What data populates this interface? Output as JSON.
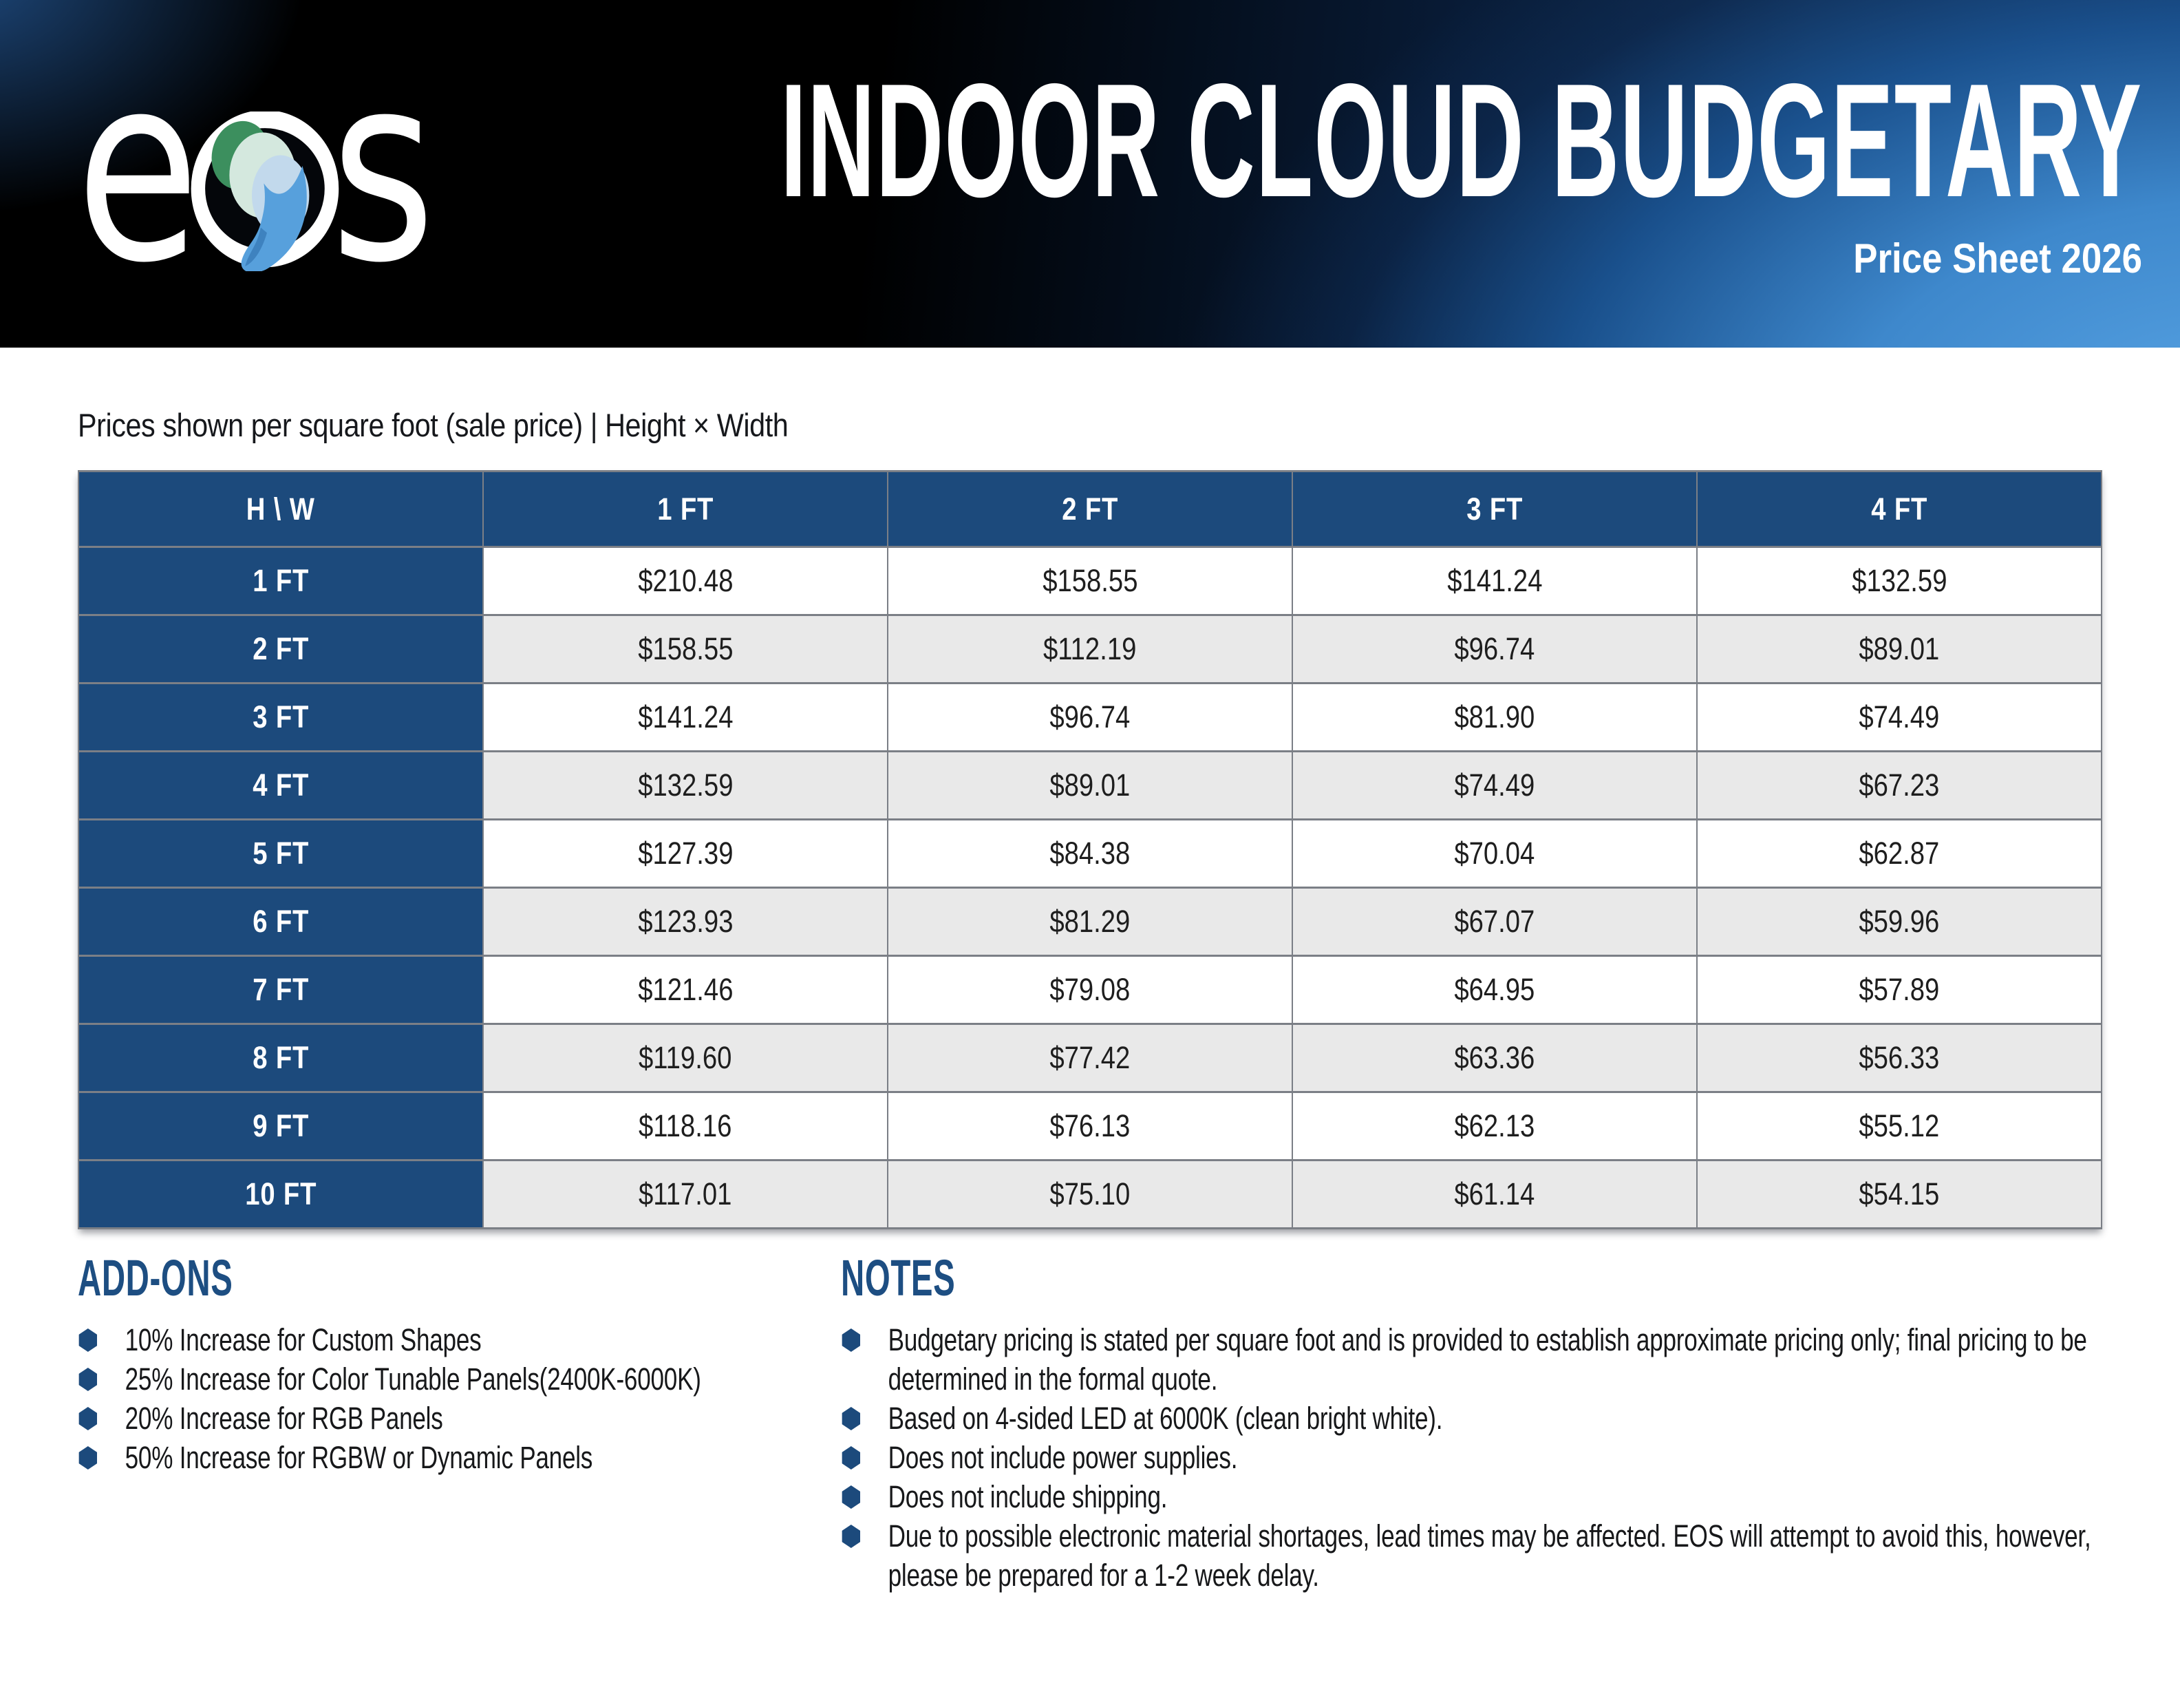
{
  "logo": {
    "text": "eos",
    "letter_e": "e",
    "letter_s": "s"
  },
  "header": {
    "title": "INDOOR CLOUD BUDGETARY",
    "subtitle": "Price Sheet 2026"
  },
  "intro": "Prices shown per square foot (sale price) | Height × Width",
  "table": {
    "corner": "H \\ W",
    "columns": [
      "1 FT",
      "2 FT",
      "3 FT",
      "4 FT"
    ],
    "rows": [
      {
        "label": "1 FT",
        "values": [
          "$210.48",
          "$158.55",
          "$141.24",
          "$132.59"
        ]
      },
      {
        "label": "2 FT",
        "values": [
          "$158.55",
          "$112.19",
          "$96.74",
          "$89.01"
        ]
      },
      {
        "label": "3 FT",
        "values": [
          "$141.24",
          "$96.74",
          "$81.90",
          "$74.49"
        ]
      },
      {
        "label": "4 FT",
        "values": [
          "$132.59",
          "$89.01",
          "$74.49",
          "$67.23"
        ]
      },
      {
        "label": "5 FT",
        "values": [
          "$127.39",
          "$84.38",
          "$70.04",
          "$62.87"
        ]
      },
      {
        "label": "6 FT",
        "values": [
          "$123.93",
          "$81.29",
          "$67.07",
          "$59.96"
        ]
      },
      {
        "label": "7 FT",
        "values": [
          "$121.46",
          "$79.08",
          "$64.95",
          "$57.89"
        ]
      },
      {
        "label": "8 FT",
        "values": [
          "$119.60",
          "$77.42",
          "$63.36",
          "$56.33"
        ]
      },
      {
        "label": "9 FT",
        "values": [
          "$118.16",
          "$76.13",
          "$62.13",
          "$55.12"
        ]
      },
      {
        "label": "10 FT",
        "values": [
          "$117.01",
          "$75.10",
          "$61.14",
          "$54.15"
        ]
      }
    ]
  },
  "addons": {
    "title": "ADD-ONS",
    "items": [
      "10% Increase for Custom Shapes",
      "25% Increase for Color Tunable Panels(2400K-6000K)",
      "20% Increase for RGB Panels",
      "50% Increase for RGBW or Dynamic Panels"
    ]
  },
  "notes": {
    "title": "NOTES",
    "items": [
      "Budgetary pricing is stated per square foot and is provided to establish approximate pricing only; final pricing to be determined in the formal quote.",
      "Based on 4-sided LED at 6000K (clean bright white).",
      "Does not include power supplies.",
      "Does not include shipping.",
      "Due to possible electronic material shortages, lead times may be affected. EOS will attempt to avoid this, however, please be prepared for a 1-2 week delay."
    ]
  },
  "colors": {
    "table_navy": "#1c4a7c",
    "heading_blue": "#1d4e82",
    "row_alt_gray": "#e9e9e9",
    "border_gray": "#7b7f86",
    "hero_bright_blue": "#4fa0e0",
    "hero_dark_navy": "#0d2348",
    "logo_green": "#3c8f5e",
    "logo_blue": "#57a0dc"
  }
}
